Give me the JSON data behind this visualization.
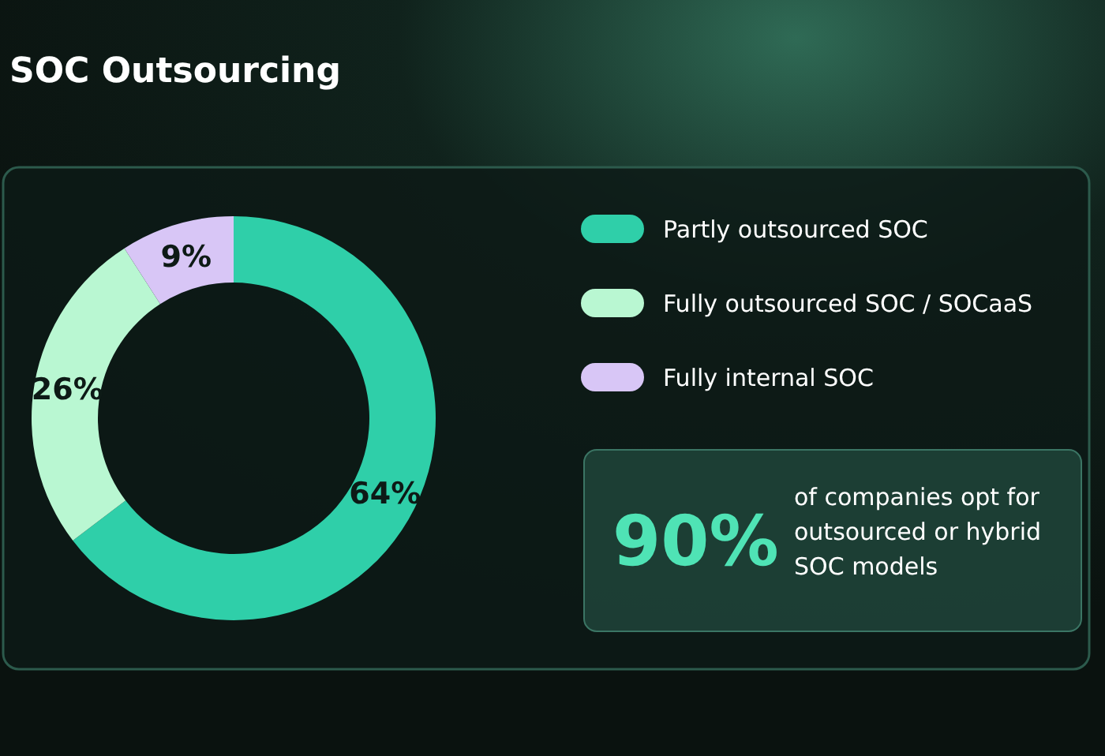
{
  "chart_data": {
    "type": "donut",
    "title": "SOC Outsourcing",
    "categories": [
      "Partly outsourced SOC",
      "Fully outsourced SOC / SOCaaS",
      "Fully internal SOC"
    ],
    "values": [
      64,
      26,
      9
    ],
    "value_labels": [
      "64%",
      "26%",
      "9%"
    ],
    "colors": [
      "#2fcfa9",
      "#b9f7d2",
      "#d8c6f6"
    ],
    "legend": "right",
    "annotations": [
      "90%",
      "of companies opt for outsourced or hybrid SOC models"
    ]
  }
}
